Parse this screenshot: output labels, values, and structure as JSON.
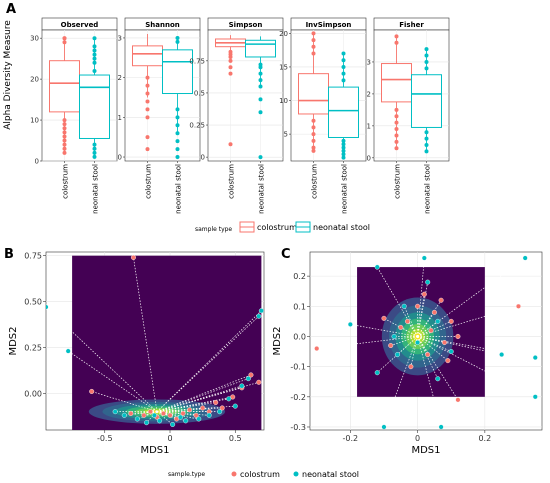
{
  "figure": {
    "panel_labels": [
      "A",
      "B",
      "C"
    ],
    "legend_a": {
      "title": "sample type",
      "items": [
        "colostrum",
        "neonatal stool"
      ]
    },
    "legend_bc": {
      "title": "sample.type",
      "items": [
        "colostrum",
        "neonatal stool"
      ]
    }
  },
  "colors": {
    "colostrum": "#F8766D",
    "neonatal_stool": "#00BFC4",
    "density_bg": "#440154"
  },
  "chart_data": [
    {
      "type": "box",
      "panel": "A",
      "ylabel": "Alpha Diversity Measure",
      "categories": [
        "colostrum",
        "neonatal stool"
      ],
      "facets": [
        {
          "title": "Observed",
          "ylim": [
            0,
            32
          ],
          "yticks": [
            0,
            10,
            20,
            30
          ],
          "boxes": [
            {
              "group": "colostrum",
              "min": 2,
              "q1": 12,
              "median": 19,
              "q3": 24.5,
              "max": 30,
              "points": [
                2,
                3,
                4,
                5,
                6,
                7,
                8,
                9,
                10,
                30,
                30,
                29
              ]
            },
            {
              "group": "neonatal stool",
              "min": 1,
              "q1": 5.5,
              "median": 18,
              "q3": 21,
              "max": 30,
              "points": [
                1,
                2,
                3,
                4,
                22,
                24,
                25,
                26,
                27,
                28,
                30
              ]
            }
          ]
        },
        {
          "title": "Shannon",
          "ylim": [
            -0.1,
            3.2
          ],
          "yticks": [
            0,
            1,
            2,
            3
          ],
          "boxes": [
            {
              "group": "colostrum",
              "min": 1.5,
              "q1": 2.3,
              "median": 2.6,
              "q3": 2.8,
              "max": 3.1,
              "points": [
                0.2,
                0.5,
                1.0,
                1.2,
                1.4,
                1.6,
                1.8,
                2.0
              ]
            },
            {
              "group": "neonatal stool",
              "min": 0.6,
              "q1": 1.6,
              "median": 2.4,
              "q3": 2.7,
              "max": 3.0,
              "points": [
                0.0,
                0.2,
                0.4,
                0.6,
                0.8,
                1.0,
                1.2,
                2.9,
                3.0
              ]
            }
          ]
        },
        {
          "title": "Simpson",
          "ylim": [
            -0.03,
            0.99
          ],
          "yticks": [
            0.0,
            0.25,
            0.5,
            0.75
          ],
          "boxes": [
            {
              "group": "colostrum",
              "min": 0.8,
              "q1": 0.86,
              "median": 0.89,
              "q3": 0.92,
              "max": 0.95,
              "points": [
                0.1,
                0.65,
                0.7,
                0.75,
                0.78,
                0.8,
                0.82
              ]
            },
            {
              "group": "neonatal stool",
              "min": 0.55,
              "q1": 0.78,
              "median": 0.88,
              "q3": 0.91,
              "max": 0.94,
              "points": [
                0.0,
                0.35,
                0.45,
                0.55,
                0.6,
                0.65,
                0.7,
                0.72
              ]
            }
          ]
        },
        {
          "title": "InvSimpson",
          "ylim": [
            1,
            20.5
          ],
          "yticks": [
            5,
            10,
            15,
            20
          ],
          "boxes": [
            {
              "group": "colostrum",
              "min": 3,
              "q1": 8,
              "median": 10,
              "q3": 14,
              "max": 20,
              "points": [
                2.5,
                3,
                4,
                5,
                6,
                7,
                17,
                18,
                19,
                20
              ]
            },
            {
              "group": "neonatal stool",
              "min": 2,
              "q1": 4.5,
              "median": 8.5,
              "q3": 12,
              "max": 17,
              "points": [
                1.5,
                2,
                2.5,
                3,
                3.5,
                4,
                13,
                14,
                15,
                16,
                17
              ]
            }
          ]
        },
        {
          "title": "Fisher",
          "ylim": [
            -0.1,
            4.0
          ],
          "yticks": [
            0,
            1,
            2,
            3
          ],
          "boxes": [
            {
              "group": "colostrum",
              "min": 0.3,
              "q1": 1.75,
              "median": 2.45,
              "q3": 2.95,
              "max": 3.8,
              "points": [
                0.3,
                0.5,
                0.7,
                0.9,
                1.1,
                1.3,
                1.5,
                3.6,
                3.8
              ]
            },
            {
              "group": "neonatal stool",
              "min": 0.2,
              "q1": 0.95,
              "median": 2.0,
              "q3": 2.6,
              "max": 3.4,
              "points": [
                0.2,
                0.4,
                0.6,
                0.8,
                2.8,
                3.0,
                3.2,
                3.4
              ]
            }
          ]
        }
      ]
    },
    {
      "type": "scatter",
      "panel": "B",
      "xlabel": "MDS1",
      "ylabel": "MDS2",
      "xlim": [
        -0.95,
        0.72
      ],
      "ylim": [
        -0.2,
        0.77
      ],
      "xticks": [
        -0.5,
        0.0,
        0.5
      ],
      "yticks": [
        0.0,
        0.25,
        0.5,
        0.75
      ],
      "ytick_labels": [
        "0.00",
        "0.25",
        "0.50",
        "0.75"
      ],
      "density_x": [
        -0.75,
        0.7
      ],
      "density_y": [
        -0.2,
        0.75
      ],
      "centroid": [
        -0.1,
        -0.1
      ],
      "points_colostrum": [
        [
          -0.28,
          0.74
        ],
        [
          -0.6,
          0.01
        ],
        [
          0.68,
          0.06
        ],
        [
          0.55,
          0.03
        ],
        [
          0.48,
          -0.02
        ],
        [
          0.4,
          -0.08
        ],
        [
          0.3,
          -0.1
        ],
        [
          -0.2,
          -0.12
        ],
        [
          -0.1,
          -0.13
        ],
        [
          0.0,
          -0.12
        ],
        [
          0.1,
          -0.11
        ],
        [
          -0.15,
          -0.1
        ],
        [
          0.05,
          -0.14
        ],
        [
          0.15,
          -0.09
        ],
        [
          -0.05,
          -0.11
        ],
        [
          0.2,
          -0.12
        ],
        [
          0.25,
          -0.08
        ],
        [
          -0.3,
          -0.11
        ],
        [
          0.35,
          -0.05
        ],
        [
          0.62,
          0.1
        ]
      ],
      "points_neonatal_stool": [
        [
          -0.95,
          0.47
        ],
        [
          -0.78,
          0.23
        ],
        [
          0.7,
          0.45
        ],
        [
          0.68,
          0.42
        ],
        [
          0.6,
          0.08
        ],
        [
          0.55,
          0.04
        ],
        [
          0.45,
          -0.03
        ],
        [
          0.5,
          -0.07
        ],
        [
          -0.25,
          -0.14
        ],
        [
          -0.18,
          -0.16
        ],
        [
          -0.08,
          -0.15
        ],
        [
          0.02,
          -0.17
        ],
        [
          0.12,
          -0.15
        ],
        [
          0.22,
          -0.14
        ],
        [
          -0.35,
          -0.12
        ],
        [
          -0.42,
          -0.1
        ],
        [
          0.3,
          -0.12
        ],
        [
          0.38,
          -0.1
        ],
        [
          -0.12,
          -0.12
        ],
        [
          0.08,
          -0.13
        ]
      ]
    },
    {
      "type": "scatter",
      "panel": "C",
      "xlabel": "MDS1",
      "ylabel": "MDS2",
      "xlim": [
        -0.32,
        0.37
      ],
      "ylim": [
        -0.31,
        0.28
      ],
      "xticks": [
        -0.2,
        0.0,
        0.2
      ],
      "yticks": [
        -0.3,
        -0.2,
        -0.1,
        0.0,
        0.1,
        0.2
      ],
      "ytick_labels": [
        "-0.3",
        "-0.2",
        "-0.1",
        "0.0",
        "0.1",
        "0.2"
      ],
      "density_x": [
        -0.18,
        0.2
      ],
      "density_y": [
        -0.2,
        0.23
      ],
      "centroid": [
        0.0,
        0.0
      ],
      "points_colostrum": [
        [
          -0.3,
          -0.04
        ],
        [
          0.3,
          0.1
        ],
        [
          0.12,
          -0.21
        ],
        [
          0.1,
          0.05
        ],
        [
          0.08,
          -0.02
        ],
        [
          -0.05,
          0.03
        ],
        [
          0.03,
          -0.06
        ],
        [
          0.05,
          0.08
        ],
        [
          -0.08,
          -0.03
        ],
        [
          0.0,
          0.1
        ],
        [
          0.07,
          0.12
        ],
        [
          -0.02,
          -0.1
        ],
        [
          0.12,
          0.0
        ],
        [
          -0.1,
          0.06
        ],
        [
          0.04,
          0.02
        ],
        [
          -0.03,
          0.05
        ],
        [
          0.09,
          -0.08
        ],
        [
          0.02,
          0.14
        ]
      ],
      "points_neonatal_stool": [
        [
          -0.12,
          0.23
        ],
        [
          0.02,
          0.26
        ],
        [
          0.32,
          0.26
        ],
        [
          0.35,
          -0.07
        ],
        [
          0.35,
          -0.2
        ],
        [
          0.07,
          -0.3
        ],
        [
          -0.1,
          -0.3
        ],
        [
          -0.2,
          0.04
        ],
        [
          0.25,
          -0.06
        ],
        [
          0.06,
          0.05
        ],
        [
          -0.06,
          -0.06
        ],
        [
          0.0,
          -0.02
        ],
        [
          -0.04,
          0.1
        ],
        [
          0.1,
          -0.05
        ],
        [
          -0.12,
          -0.12
        ],
        [
          0.06,
          -0.14
        ],
        [
          -0.07,
          0.0
        ],
        [
          0.03,
          0.18
        ]
      ]
    }
  ]
}
